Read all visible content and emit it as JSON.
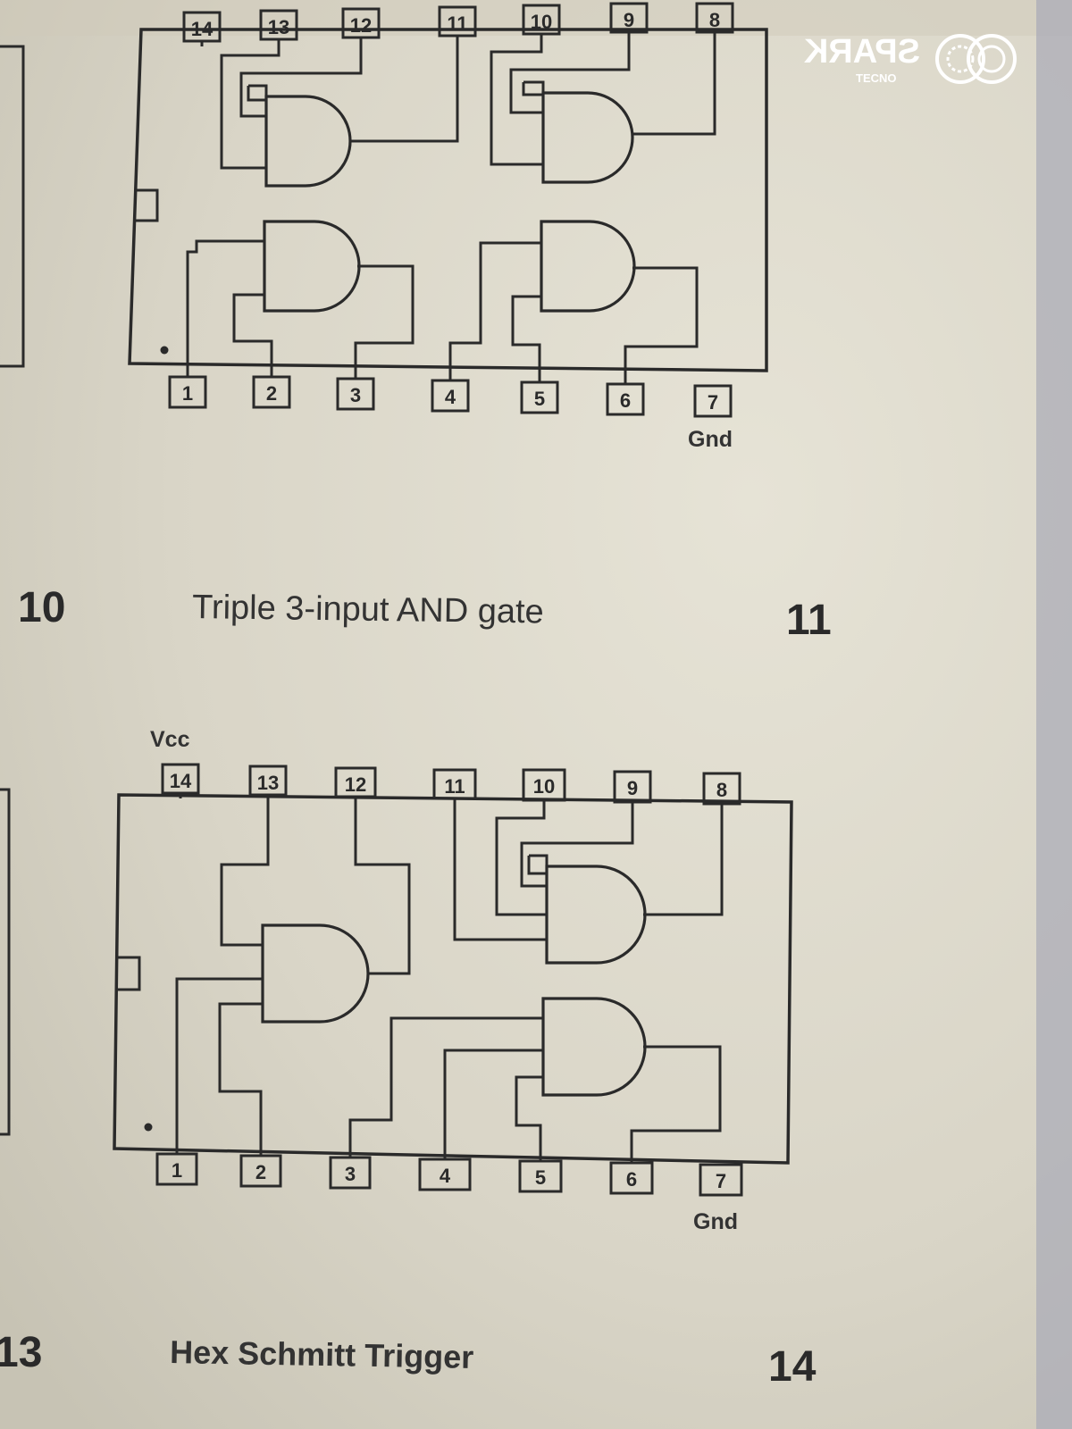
{
  "watermark": {
    "brand": "SPARK",
    "maker": "TECNO"
  },
  "ic_top": {
    "pins_top": [
      "14",
      "13",
      "12",
      "11",
      "10",
      "9",
      "8"
    ],
    "pins_bottom": [
      "1",
      "2",
      "3",
      "4",
      "5",
      "6",
      "7"
    ],
    "gnd_label": "Gnd"
  },
  "middle_row": {
    "left_number": "10",
    "caption": "Triple 3-input AND gate",
    "right_number": "11"
  },
  "ic_bottom": {
    "vcc_label": "Vcc",
    "pins_top": [
      "14",
      "13",
      "12",
      "11",
      "10",
      "9",
      "8"
    ],
    "pins_bottom": [
      "1",
      "2",
      "3",
      "4",
      "5",
      "6",
      "7"
    ],
    "gnd_label": "Gnd"
  },
  "bottom_row": {
    "left_number": "13",
    "caption": "Hex Schmitt Trigger",
    "right_number": "14"
  }
}
